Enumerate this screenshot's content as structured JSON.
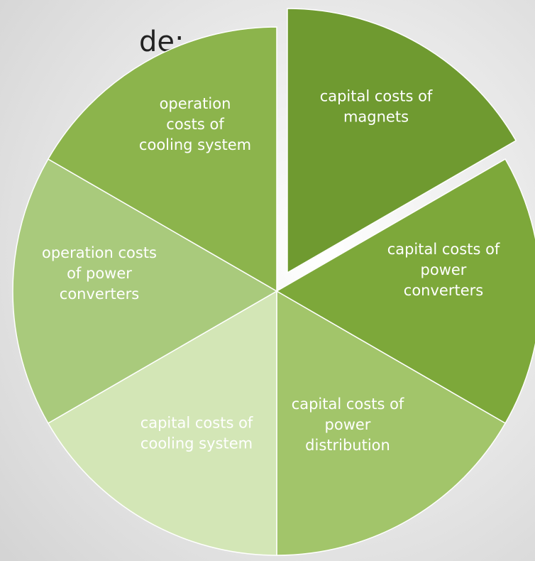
{
  "heading": "de:",
  "nodes": [
    {
      "lines": [
        "capital costs of",
        "magnets"
      ]
    },
    {
      "lines": [
        "capital costs of",
        "power",
        "converters"
      ]
    },
    {
      "lines": [
        "capital costs of",
        "power",
        "distribution"
      ]
    },
    {
      "lines": [
        "capital costs of",
        "cooling system"
      ]
    },
    {
      "lines": [
        "operation costs",
        "of power",
        "converters"
      ]
    },
    {
      "lines": [
        "operation",
        "costs of",
        "cooling system"
      ]
    }
  ]
}
